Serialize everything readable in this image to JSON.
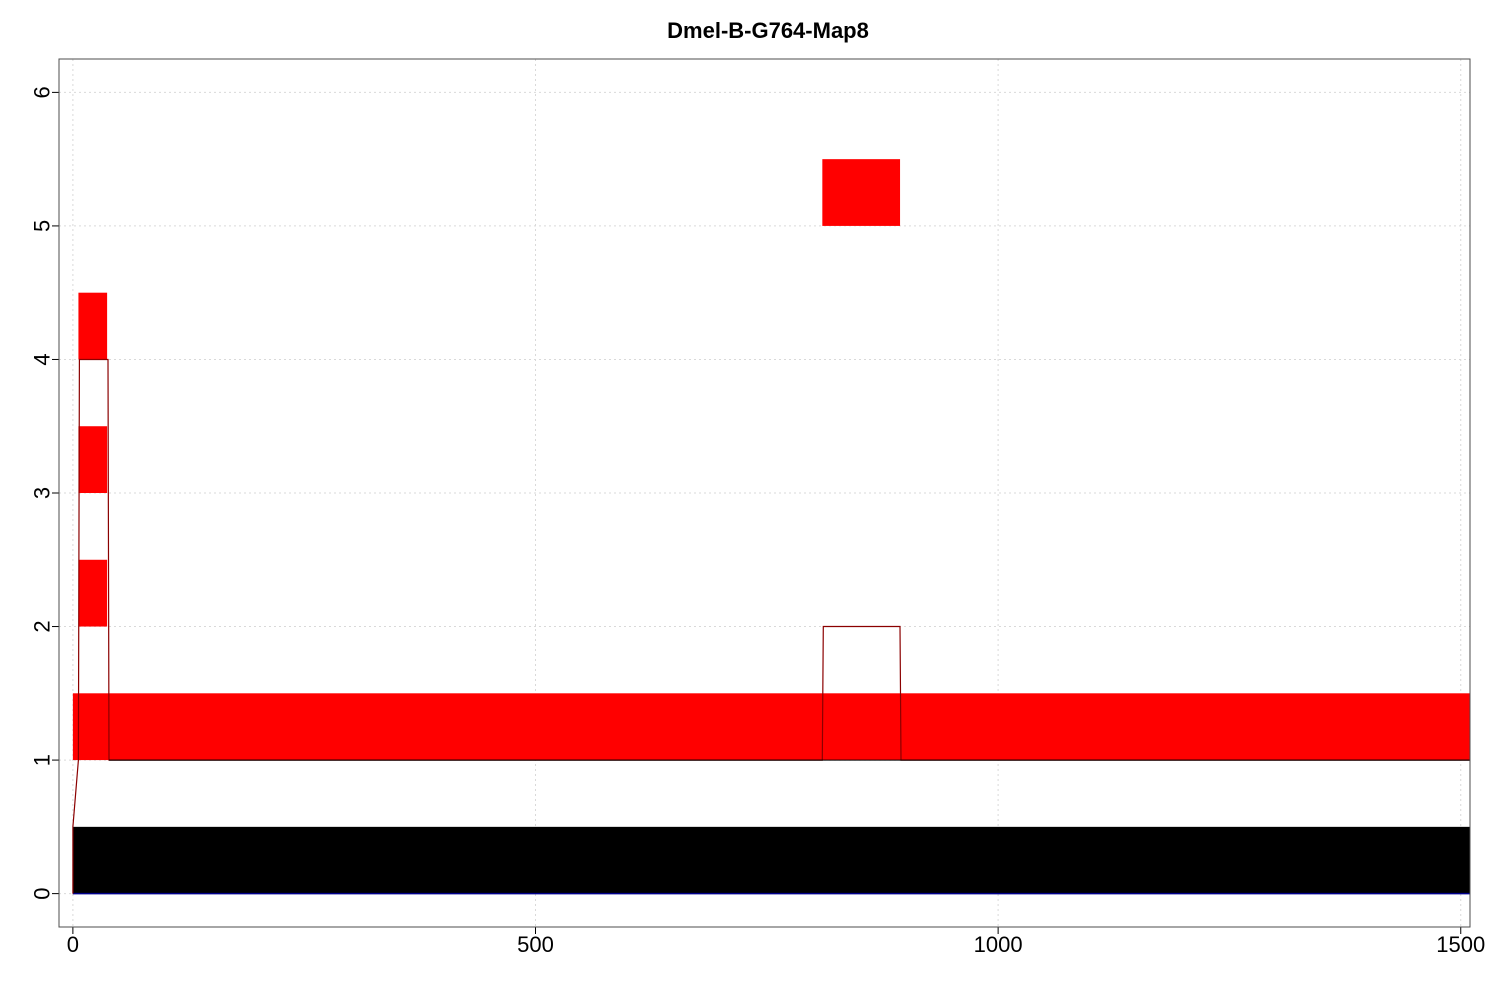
{
  "chart_data": {
    "type": "bar",
    "title": "Dmel-B-G764-Map8",
    "xlabel": "",
    "ylabel": "",
    "xlim": [
      -15,
      1510
    ],
    "ylim": [
      -0.25,
      6.25
    ],
    "x_ticks": [
      0,
      500,
      1000,
      1500
    ],
    "x_tick_labels": [
      "0",
      "500",
      "1000",
      "1500"
    ],
    "y_ticks": [
      0,
      1,
      2,
      3,
      4,
      5,
      6
    ],
    "y_tick_labels": [
      "0",
      "1",
      "2",
      "3",
      "4",
      "5",
      "6"
    ],
    "grid": true,
    "colors": {
      "red": "#ff0000",
      "black": "#000000",
      "outline": "#8b0000",
      "baseline": "#00008b"
    },
    "segments": [
      {
        "track": "black",
        "x0": 0,
        "x1": 1510,
        "y0": 0,
        "y1": 0.5
      },
      {
        "track": "red",
        "x0": 0,
        "x1": 1510,
        "y0": 1,
        "y1": 1.5
      },
      {
        "track": "red",
        "x0": 6,
        "x1": 37,
        "y0": 2,
        "y1": 2.5
      },
      {
        "track": "red",
        "x0": 6,
        "x1": 37,
        "y0": 3,
        "y1": 3.5
      },
      {
        "track": "red",
        "x0": 6,
        "x1": 37,
        "y0": 4,
        "y1": 4.5
      },
      {
        "track": "red",
        "x0": 810,
        "x1": 894,
        "y0": 5,
        "y1": 5.5
      }
    ],
    "coverage_line": [
      [
        0,
        0
      ],
      [
        0,
        0.5
      ],
      [
        6,
        1
      ],
      [
        7,
        4
      ],
      [
        38,
        4
      ],
      [
        39,
        1
      ],
      [
        810,
        1
      ],
      [
        811,
        2
      ],
      [
        894,
        2
      ],
      [
        895,
        1
      ],
      [
        1510,
        1
      ]
    ]
  }
}
